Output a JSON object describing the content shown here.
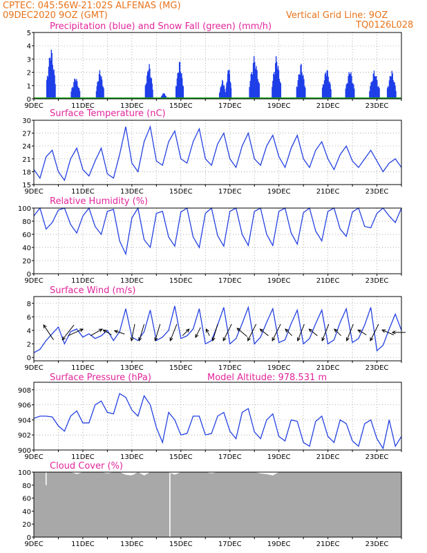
{
  "header": {
    "left_line1": "CPTEC:   045:56W-21:02S   ALFENAS (MG)",
    "left_line2": "09DEC2020 9OZ (GMT)",
    "right_line1": "Vertical Grid Line: 9OZ",
    "right_line2": "TQ0126L028"
  },
  "colors": {
    "header": "#e8731a",
    "titles": "#e2249a",
    "series": "#2340e0",
    "precip": "#1f3ee8",
    "snow": "#1aa01a",
    "cloud": "#a8a8a8"
  },
  "x_tick_labels": [
    "9DEC",
    "11DEC",
    "13DEC",
    "15DEC",
    "17DEC",
    "19DEC",
    "21DEC",
    "23DEC"
  ],
  "chart_data": [
    {
      "type": "bar",
      "title": "Precipitation (blue) and Snow Fall (green) (mm/h)",
      "xlabel": "",
      "ylabel": "",
      "ylim": [
        0,
        5
      ],
      "yticks": [
        0,
        1,
        2,
        3,
        4,
        5
      ],
      "x_range_days": [
        0,
        15
      ],
      "grid": true,
      "series": [
        {
          "name": "Precipitation",
          "bursts": [
            {
              "center_day": 0.7,
              "width": 0.35,
              "peak": 4.1
            },
            {
              "center_day": 1.7,
              "width": 0.35,
              "peak": 1.8
            },
            {
              "center_day": 2.7,
              "width": 0.3,
              "peak": 2.3
            },
            {
              "center_day": 4.7,
              "width": 0.3,
              "peak": 2.8
            },
            {
              "center_day": 5.3,
              "width": 0.2,
              "peak": 0.5
            },
            {
              "center_day": 5.95,
              "width": 0.3,
              "peak": 3.0
            },
            {
              "center_day": 7.7,
              "width": 0.25,
              "peak": 1.5
            },
            {
              "center_day": 7.95,
              "width": 0.2,
              "peak": 2.6
            },
            {
              "center_day": 9.0,
              "width": 0.4,
              "peak": 3.4
            },
            {
              "center_day": 9.9,
              "width": 0.35,
              "peak": 3.4
            },
            {
              "center_day": 10.9,
              "width": 0.35,
              "peak": 2.8
            },
            {
              "center_day": 11.95,
              "width": 0.35,
              "peak": 2.5
            },
            {
              "center_day": 12.9,
              "width": 0.35,
              "peak": 2.4
            },
            {
              "center_day": 13.9,
              "width": 0.4,
              "peak": 2.3
            },
            {
              "center_day": 14.6,
              "width": 0.35,
              "peak": 2.3
            }
          ]
        },
        {
          "name": "Snow Fall",
          "values": [
            0
          ]
        }
      ]
    },
    {
      "type": "line",
      "title": "Surface Temperature (nC)",
      "xlabel": "",
      "ylabel": "",
      "ylim": [
        15,
        30
      ],
      "yticks": [
        15,
        18,
        21,
        24,
        27,
        30
      ],
      "grid": true,
      "x_days": [
        0,
        0.25,
        0.5,
        0.75,
        1.0,
        1.25,
        1.5,
        1.75,
        2.0,
        2.25,
        2.5,
        2.75,
        3.0,
        3.25,
        3.5,
        3.75,
        4.0,
        4.25,
        4.5,
        4.75,
        5.0,
        5.25,
        5.5,
        5.75,
        6.0,
        6.25,
        6.5,
        6.75,
        7.0,
        7.25,
        7.5,
        7.75,
        8.0,
        8.25,
        8.5,
        8.75,
        9.0,
        9.25,
        9.5,
        9.75,
        10.0,
        10.25,
        10.5,
        10.75,
        11.0,
        11.25,
        11.5,
        11.75,
        12.0,
        12.25,
        12.5,
        12.75,
        13.0,
        13.25,
        13.5,
        13.75,
        14.0,
        14.25,
        14.5,
        14.75,
        15.0
      ],
      "y_values": [
        18.5,
        16.5,
        21.5,
        23,
        18,
        16,
        21,
        23.5,
        18.5,
        17,
        20.5,
        23.5,
        17.5,
        16.5,
        22,
        28.5,
        20,
        18,
        25,
        28.5,
        20.5,
        19.5,
        25,
        27.5,
        21,
        20,
        25,
        28,
        21,
        19.5,
        24.5,
        27,
        21,
        19,
        24,
        27,
        21,
        19.5,
        24,
        26.5,
        21.5,
        19,
        23.5,
        26.5,
        21,
        19,
        23,
        25,
        21,
        18.5,
        22,
        24,
        20.5,
        19,
        21,
        23,
        20.5,
        18,
        20,
        21,
        19
      ]
    },
    {
      "type": "line",
      "title": "Relative Humidity (%)",
      "xlabel": "",
      "ylabel": "",
      "ylim": [
        0,
        100
      ],
      "yticks": [
        0,
        20,
        40,
        60,
        80,
        100
      ],
      "grid": true,
      "x_days": [
        0,
        0.25,
        0.5,
        0.75,
        1.0,
        1.25,
        1.5,
        1.75,
        2.0,
        2.25,
        2.5,
        2.75,
        3.0,
        3.25,
        3.5,
        3.75,
        4.0,
        4.25,
        4.5,
        4.75,
        5.0,
        5.25,
        5.5,
        5.75,
        6.0,
        6.25,
        6.5,
        6.75,
        7.0,
        7.25,
        7.5,
        7.75,
        8.0,
        8.25,
        8.5,
        8.75,
        9.0,
        9.25,
        9.5,
        9.75,
        10.0,
        10.25,
        10.5,
        10.75,
        11.0,
        11.25,
        11.5,
        11.75,
        12.0,
        12.25,
        12.5,
        12.75,
        13.0,
        13.25,
        13.5,
        13.75,
        14.0,
        14.25,
        14.5,
        14.75,
        15.0
      ],
      "y_values": [
        88,
        100,
        68,
        78,
        97,
        100,
        75,
        62,
        88,
        100,
        72,
        60,
        95,
        98,
        50,
        30,
        85,
        100,
        52,
        40,
        92,
        95,
        56,
        42,
        94,
        100,
        56,
        40,
        92,
        100,
        58,
        42,
        95,
        100,
        60,
        43,
        95,
        100,
        60,
        43,
        95,
        100,
        62,
        45,
        93,
        100,
        65,
        50,
        95,
        100,
        68,
        57,
        94,
        100,
        72,
        70,
        92,
        100,
        88,
        78,
        100
      ]
    },
    {
      "type": "line",
      "title": "Surface Wind (m/s)",
      "xlabel": "",
      "ylabel": "",
      "ylim": [
        -0.5,
        9
      ],
      "yticks": [
        0,
        2,
        4,
        6,
        8
      ],
      "grid": true,
      "x_days": [
        0,
        0.25,
        0.5,
        0.75,
        1.0,
        1.25,
        1.5,
        1.75,
        2.0,
        2.25,
        2.5,
        2.75,
        3.0,
        3.25,
        3.5,
        3.75,
        4.0,
        4.25,
        4.5,
        4.75,
        5.0,
        5.25,
        5.5,
        5.75,
        6.0,
        6.25,
        6.5,
        6.75,
        7.0,
        7.25,
        7.5,
        7.75,
        8.0,
        8.25,
        8.5,
        8.75,
        9.0,
        9.25,
        9.5,
        9.75,
        10.0,
        10.25,
        10.5,
        10.75,
        11.0,
        11.25,
        11.5,
        11.75,
        12.0,
        12.25,
        12.5,
        12.75,
        13.0,
        13.25,
        13.5,
        13.75,
        14.0,
        14.25,
        14.5,
        14.75,
        15.0
      ],
      "y_values": [
        0.7,
        1.2,
        2.5,
        3.5,
        4.5,
        2.0,
        3.8,
        4.2,
        3.0,
        3.5,
        2.8,
        3.2,
        4.0,
        2.5,
        3.8,
        7.2,
        3.0,
        2.5,
        3.8,
        7.0,
        2.5,
        3.0,
        4.0,
        7.6,
        2.8,
        3.2,
        4.2,
        7.2,
        2.0,
        2.5,
        4.8,
        7.4,
        2.0,
        2.8,
        5.0,
        7.4,
        2.0,
        3.0,
        5.2,
        7.2,
        2.2,
        2.6,
        5.0,
        7.0,
        2.0,
        2.8,
        5.0,
        7.0,
        2.0,
        2.6,
        5.2,
        7.2,
        2.2,
        2.8,
        4.8,
        7.4,
        1.0,
        1.8,
        4.2,
        6.4,
        4.0
      ],
      "wind_vectors": [
        {
          "day": 0.6,
          "dx": -0.6,
          "dy": 0.9
        },
        {
          "day": 1.4,
          "dx": -0.7,
          "dy": -0.9
        },
        {
          "day": 1.7,
          "dx": 0.9,
          "dy": 0.4
        },
        {
          "day": 2.55,
          "dx": 0.7,
          "dy": 0.4
        },
        {
          "day": 3.0,
          "dx": -0.5,
          "dy": 0.3
        },
        {
          "day": 3.5,
          "dx": -0.6,
          "dy": 0.2
        },
        {
          "day": 4.05,
          "dx": -0.2,
          "dy": -1.0
        },
        {
          "day": 4.4,
          "dx": -0.3,
          "dy": -1.0
        },
        {
          "day": 5.05,
          "dx": -0.3,
          "dy": -1.0
        },
        {
          "day": 5.7,
          "dx": -0.4,
          "dy": -1.0
        },
        {
          "day": 6.2,
          "dx": 0.4,
          "dy": 0.4
        },
        {
          "day": 6.7,
          "dx": -0.3,
          "dy": -0.6
        },
        {
          "day": 7.1,
          "dx": -0.2,
          "dy": 0.4
        },
        {
          "day": 7.4,
          "dx": -0.3,
          "dy": -1.0
        },
        {
          "day": 7.9,
          "dx": -0.5,
          "dy": -1.0
        },
        {
          "day": 8.5,
          "dx": -0.6,
          "dy": 0.5
        },
        {
          "day": 8.9,
          "dx": -0.5,
          "dy": -1.0
        },
        {
          "day": 9.4,
          "dx": -0.5,
          "dy": 0.4
        },
        {
          "day": 9.9,
          "dx": -0.5,
          "dy": -1.0
        },
        {
          "day": 10.4,
          "dx": -0.4,
          "dy": 0.4
        },
        {
          "day": 10.9,
          "dx": -0.4,
          "dy": -1.0
        },
        {
          "day": 11.4,
          "dx": -0.5,
          "dy": 0.4
        },
        {
          "day": 11.9,
          "dx": -0.4,
          "dy": -1.0
        },
        {
          "day": 12.4,
          "dx": -0.4,
          "dy": 0.4
        },
        {
          "day": 12.9,
          "dx": -0.4,
          "dy": -1.0
        },
        {
          "day": 13.4,
          "dx": -0.5,
          "dy": 0.3
        },
        {
          "day": 13.9,
          "dx": -0.5,
          "dy": -1.0
        },
        {
          "day": 14.45,
          "dx": -0.7,
          "dy": 0.3
        },
        {
          "day": 14.9,
          "dx": -0.8,
          "dy": 0.0
        }
      ]
    },
    {
      "type": "line",
      "title": "Surface Pressure (hPa)",
      "annotation": "Model Altitude: 978.531 m",
      "xlabel": "",
      "ylabel": "",
      "ylim": [
        900,
        909
      ],
      "yticks": [
        900,
        902,
        904,
        906,
        908
      ],
      "grid": true,
      "x_days": [
        0,
        0.25,
        0.5,
        0.75,
        1.0,
        1.25,
        1.5,
        1.75,
        2.0,
        2.25,
        2.5,
        2.75,
        3.0,
        3.25,
        3.5,
        3.75,
        4.0,
        4.25,
        4.5,
        4.75,
        5.0,
        5.25,
        5.5,
        5.75,
        6.0,
        6.25,
        6.5,
        6.75,
        7.0,
        7.25,
        7.5,
        7.75,
        8.0,
        8.25,
        8.5,
        8.75,
        9.0,
        9.25,
        9.5,
        9.75,
        10.0,
        10.25,
        10.5,
        10.75,
        11.0,
        11.25,
        11.5,
        11.75,
        12.0,
        12.25,
        12.5,
        12.75,
        13.0,
        13.25,
        13.5,
        13.75,
        14.0,
        14.25,
        14.5,
        14.75,
        15.0
      ],
      "y_values": [
        904.2,
        904.5,
        904.5,
        904.4,
        903.2,
        902.5,
        904.5,
        905.2,
        903.6,
        903.6,
        906.0,
        906.5,
        905.0,
        904.8,
        907.5,
        907.0,
        905.3,
        904.5,
        907.2,
        906.0,
        903.0,
        901.0,
        905.0,
        904.0,
        902.0,
        902.2,
        904.5,
        904.5,
        902.0,
        902.2,
        904.5,
        905.0,
        902.5,
        901.5,
        905.0,
        905.5,
        902.4,
        901.5,
        904.0,
        904.8,
        901.8,
        901.2,
        904.0,
        903.8,
        901.0,
        900.5,
        903.8,
        904.5,
        901.8,
        901.0,
        904.0,
        903.5,
        901.2,
        900.5,
        903.5,
        904.0,
        901.5,
        900.2,
        904.0,
        900.5,
        901.8
      ]
    },
    {
      "type": "area",
      "title": "Cloud Cover (%)",
      "xlabel": "",
      "ylabel": "",
      "ylim": [
        0,
        100
      ],
      "yticks": [
        0,
        20,
        40,
        60,
        80,
        100
      ],
      "grid": true,
      "x_days": [
        0,
        0.25,
        0.5,
        0.75,
        1.0,
        1.25,
        1.5,
        1.75,
        2.0,
        2.25,
        2.5,
        2.75,
        3.0,
        3.25,
        3.5,
        3.75,
        4.0,
        4.25,
        4.5,
        4.75,
        5.0,
        5.25,
        5.5,
        5.75,
        6.0,
        6.25,
        6.5,
        6.75,
        7.0,
        7.25,
        7.5,
        7.75,
        8.0,
        8.25,
        8.5,
        8.75,
        9.0,
        9.25,
        9.5,
        9.75,
        10.0,
        10.25,
        10.5,
        10.75,
        11.0,
        11.25,
        11.5,
        11.75,
        12.0,
        12.25,
        12.5,
        12.75,
        13.0,
        13.25,
        13.5,
        13.75,
        14.0,
        14.25,
        14.5,
        14.75,
        15.0
      ],
      "y_values": [
        100,
        100,
        100,
        100,
        100,
        100,
        100,
        97,
        100,
        100,
        100,
        100,
        98,
        100,
        100,
        96,
        95,
        100,
        95,
        100,
        100,
        100,
        100,
        96,
        100,
        100,
        100,
        100,
        100,
        98,
        100,
        100,
        100,
        100,
        100,
        100,
        100,
        98,
        97,
        95,
        100,
        100,
        100,
        100,
        100,
        100,
        100,
        100,
        100,
        100,
        100,
        100,
        100,
        100,
        100,
        100,
        100,
        100,
        100,
        100,
        100
      ],
      "dips": [
        {
          "day": 0.5,
          "value": 80
        },
        {
          "day": 5.55,
          "value": 0
        }
      ]
    }
  ]
}
